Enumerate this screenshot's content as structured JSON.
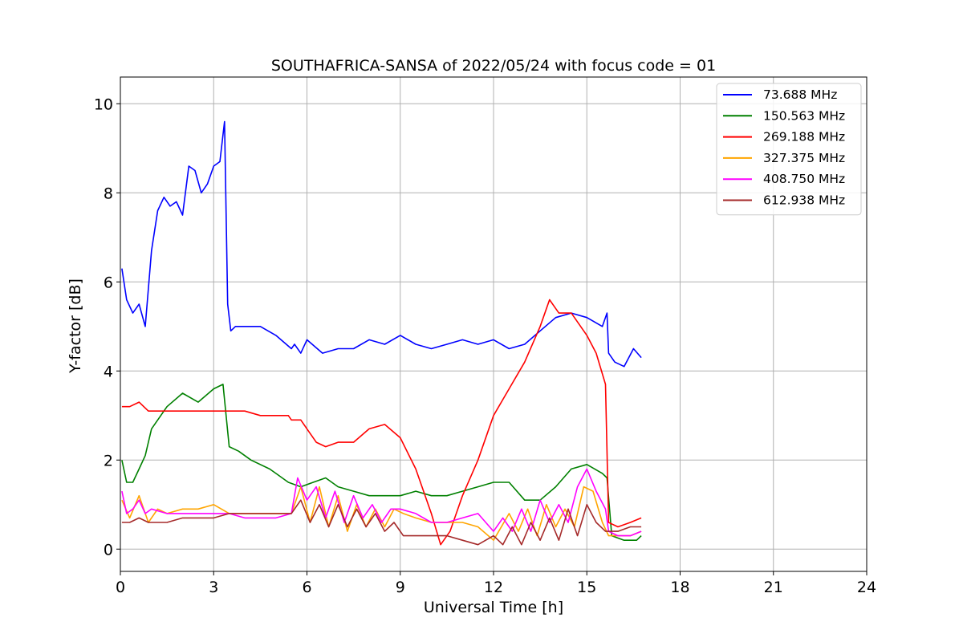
{
  "chart_data": {
    "type": "line",
    "title": "SOUTHAFRICA-SANSA of 2022/05/24 with focus code = 01",
    "xlabel": "Universal Time [h]",
    "ylabel": "Y-factor [dB]",
    "xlim": [
      0,
      24
    ],
    "ylim": [
      -0.5,
      10.6
    ],
    "xticks": [
      0,
      3,
      6,
      9,
      12,
      15,
      18,
      21,
      24
    ],
    "yticks": [
      0,
      2,
      4,
      6,
      8,
      10
    ],
    "grid": true,
    "legend_position": "top-right",
    "series": [
      {
        "name": " 73.688 MHz",
        "color": "#0000ff",
        "x": [
          0.05,
          0.2,
          0.4,
          0.6,
          0.8,
          1.0,
          1.2,
          1.4,
          1.6,
          1.8,
          2.0,
          2.2,
          2.4,
          2.6,
          2.8,
          3.0,
          3.2,
          3.35,
          3.45,
          3.55,
          3.7,
          4.0,
          4.5,
          5.0,
          5.5,
          5.6,
          5.8,
          6.0,
          6.5,
          7.0,
          7.5,
          8.0,
          8.5,
          9.0,
          9.5,
          10.0,
          10.5,
          11.0,
          11.5,
          12.0,
          12.5,
          13.0,
          13.5,
          14.0,
          14.5,
          15.0,
          15.5,
          15.65,
          15.7,
          15.9,
          16.2,
          16.5,
          16.75
        ],
        "y": [
          6.3,
          5.6,
          5.3,
          5.5,
          5.0,
          6.7,
          7.6,
          7.9,
          7.7,
          7.8,
          7.5,
          8.6,
          8.5,
          8.0,
          8.2,
          8.6,
          8.7,
          9.6,
          5.5,
          4.9,
          5.0,
          5.0,
          5.0,
          4.8,
          4.5,
          4.6,
          4.4,
          4.7,
          4.4,
          4.5,
          4.5,
          4.7,
          4.6,
          4.8,
          4.6,
          4.5,
          4.6,
          4.7,
          4.6,
          4.7,
          4.5,
          4.6,
          4.9,
          5.2,
          5.3,
          5.2,
          5.0,
          5.3,
          4.4,
          4.2,
          4.1,
          4.5,
          4.3
        ]
      },
      {
        "name": "150.563 MHz",
        "color": "#008000",
        "x": [
          0.05,
          0.2,
          0.4,
          0.6,
          0.8,
          1.0,
          1.5,
          2.0,
          2.5,
          3.0,
          3.3,
          3.5,
          3.8,
          4.2,
          4.8,
          5.0,
          5.4,
          5.8,
          6.2,
          6.6,
          7.0,
          7.5,
          8.0,
          8.5,
          9.0,
          9.5,
          10.0,
          10.5,
          11.0,
          11.5,
          12.0,
          12.5,
          13.0,
          13.5,
          14.0,
          14.5,
          15.0,
          15.5,
          15.65,
          15.8,
          16.2,
          16.6,
          16.75
        ],
        "y": [
          2.0,
          1.5,
          1.5,
          1.8,
          2.1,
          2.7,
          3.2,
          3.5,
          3.3,
          3.6,
          3.7,
          2.3,
          2.2,
          2.0,
          1.8,
          1.7,
          1.5,
          1.4,
          1.5,
          1.6,
          1.4,
          1.3,
          1.2,
          1.2,
          1.2,
          1.3,
          1.2,
          1.2,
          1.3,
          1.4,
          1.5,
          1.5,
          1.1,
          1.1,
          1.4,
          1.8,
          1.9,
          1.7,
          1.6,
          0.3,
          0.2,
          0.2,
          0.3
        ]
      },
      {
        "name": "269.188 MHz",
        "color": "#ff0000",
        "x": [
          0.05,
          0.3,
          0.6,
          0.9,
          1.5,
          2.0,
          2.5,
          3.0,
          3.5,
          4.0,
          4.5,
          5.0,
          5.4,
          5.5,
          5.8,
          6.0,
          6.3,
          6.6,
          7.0,
          7.5,
          8.0,
          8.5,
          9.0,
          9.5,
          10.0,
          10.3,
          10.6,
          11.0,
          11.5,
          12.0,
          12.5,
          13.0,
          13.5,
          13.8,
          14.1,
          14.5,
          15.0,
          15.3,
          15.6,
          15.7,
          16.0,
          16.4,
          16.75
        ],
        "y": [
          3.2,
          3.2,
          3.3,
          3.1,
          3.1,
          3.1,
          3.1,
          3.1,
          3.1,
          3.1,
          3.0,
          3.0,
          3.0,
          2.9,
          2.9,
          2.7,
          2.4,
          2.3,
          2.4,
          2.4,
          2.7,
          2.8,
          2.5,
          1.8,
          0.8,
          0.1,
          0.4,
          1.2,
          2.0,
          3.0,
          3.6,
          4.2,
          5.0,
          5.6,
          5.3,
          5.3,
          4.8,
          4.4,
          3.7,
          0.6,
          0.5,
          0.6,
          0.7
        ]
      },
      {
        "name": "327.375 MHz",
        "color": "#ffa500",
        "x": [
          0.05,
          0.3,
          0.6,
          0.9,
          1.2,
          1.5,
          2.0,
          2.5,
          3.0,
          3.5,
          4.0,
          4.5,
          5.0,
          5.5,
          5.8,
          6.1,
          6.4,
          6.7,
          7.0,
          7.3,
          7.6,
          7.9,
          8.2,
          8.5,
          8.8,
          9.1,
          9.5,
          10.0,
          10.5,
          11.0,
          11.5,
          12.0,
          12.5,
          12.8,
          13.1,
          13.4,
          13.7,
          14.0,
          14.3,
          14.6,
          14.9,
          15.2,
          15.5,
          15.7,
          16.0,
          16.4,
          16.75
        ],
        "y": [
          1.1,
          0.7,
          1.2,
          0.6,
          0.9,
          0.8,
          0.9,
          0.9,
          1.0,
          0.8,
          0.8,
          0.8,
          0.8,
          0.8,
          1.4,
          0.6,
          1.4,
          0.5,
          1.2,
          0.4,
          1.0,
          0.5,
          0.9,
          0.5,
          0.9,
          0.8,
          0.7,
          0.6,
          0.6,
          0.6,
          0.5,
          0.2,
          0.8,
          0.4,
          0.9,
          0.3,
          1.0,
          0.5,
          0.9,
          0.5,
          1.4,
          1.3,
          0.6,
          0.3,
          0.3,
          0.3,
          0.4
        ]
      },
      {
        "name": "408.750 MHz",
        "color": "#ff00ff",
        "x": [
          0.05,
          0.2,
          0.4,
          0.6,
          0.8,
          1.0,
          1.5,
          2.0,
          2.5,
          3.0,
          3.5,
          4.0,
          4.5,
          5.0,
          5.5,
          5.7,
          6.0,
          6.3,
          6.6,
          6.9,
          7.2,
          7.5,
          7.8,
          8.1,
          8.4,
          8.7,
          9.0,
          9.5,
          10.0,
          10.5,
          11.0,
          11.5,
          12.0,
          12.3,
          12.6,
          12.9,
          13.2,
          13.5,
          13.8,
          14.1,
          14.4,
          14.7,
          15.0,
          15.3,
          15.6,
          15.7,
          16.0,
          16.4,
          16.75
        ],
        "y": [
          1.3,
          0.8,
          0.9,
          1.1,
          0.8,
          0.9,
          0.8,
          0.8,
          0.8,
          0.8,
          0.8,
          0.7,
          0.7,
          0.7,
          0.8,
          1.6,
          1.1,
          1.4,
          0.7,
          1.3,
          0.6,
          1.2,
          0.7,
          1.0,
          0.6,
          0.9,
          0.9,
          0.8,
          0.6,
          0.6,
          0.7,
          0.8,
          0.4,
          0.7,
          0.4,
          0.9,
          0.4,
          1.1,
          0.6,
          1.0,
          0.6,
          1.4,
          1.8,
          1.3,
          0.9,
          0.4,
          0.3,
          0.3,
          0.4
        ]
      },
      {
        "name": "612.938 MHz",
        "color": "#a52a2a",
        "x": [
          0.05,
          0.3,
          0.6,
          0.9,
          1.2,
          1.5,
          2.0,
          2.5,
          3.0,
          3.5,
          4.0,
          4.5,
          5.0,
          5.5,
          5.8,
          6.1,
          6.4,
          6.7,
          7.0,
          7.3,
          7.6,
          7.9,
          8.2,
          8.5,
          8.8,
          9.1,
          9.5,
          10.0,
          10.5,
          11.0,
          11.5,
          12.0,
          12.3,
          12.6,
          12.9,
          13.2,
          13.5,
          13.8,
          14.1,
          14.4,
          14.7,
          15.0,
          15.3,
          15.6,
          15.7,
          16.0,
          16.4,
          16.75
        ],
        "y": [
          0.6,
          0.6,
          0.7,
          0.6,
          0.6,
          0.6,
          0.7,
          0.7,
          0.7,
          0.8,
          0.8,
          0.8,
          0.8,
          0.8,
          1.1,
          0.6,
          1.0,
          0.5,
          1.0,
          0.5,
          0.9,
          0.5,
          0.8,
          0.4,
          0.6,
          0.3,
          0.3,
          0.3,
          0.3,
          0.2,
          0.1,
          0.3,
          0.1,
          0.5,
          0.1,
          0.6,
          0.2,
          0.7,
          0.2,
          0.9,
          0.3,
          1.0,
          0.6,
          0.4,
          0.4,
          0.4,
          0.5,
          0.5
        ]
      }
    ]
  }
}
